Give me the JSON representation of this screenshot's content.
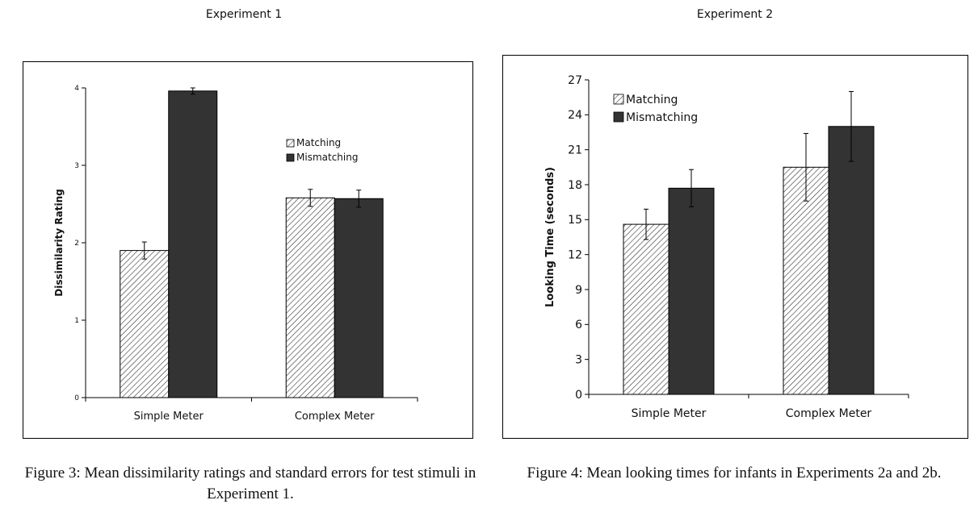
{
  "headers": {
    "exp1": "Experiment 1",
    "exp2": "Experiment 2"
  },
  "captions": {
    "fig3": "Figure 3:  Mean dissimilarity ratings and standard errors for test stimuli in Experiment 1.",
    "fig4": "Figure 4:  Mean looking times for infants in Experiments 2a and 2b."
  },
  "colors": {
    "matching_fill": "#ffffff",
    "matching_hatch": "#333333",
    "mismatching": "#333333"
  },
  "chart_data": [
    {
      "type": "bar",
      "xlabel": "",
      "ylabel": "Dissimilarity Rating",
      "ylim": [
        0,
        4
      ],
      "yticks": [
        0,
        1,
        2,
        3,
        4
      ],
      "categories": [
        "Simple Meter",
        "Complex Meter"
      ],
      "series": [
        {
          "name": "Matching",
          "values": [
            1.9,
            2.58
          ],
          "errors": [
            0.11,
            0.11
          ]
        },
        {
          "name": "Mismatching",
          "values": [
            3.96,
            2.57
          ],
          "errors": [
            0.04,
            0.11
          ]
        }
      ],
      "legend": "right-middle",
      "grid": false
    },
    {
      "type": "bar",
      "xlabel": "",
      "ylabel": "Looking Time  (seconds)",
      "ylim": [
        0,
        27
      ],
      "yticks": [
        0,
        3,
        6,
        9,
        12,
        15,
        18,
        21,
        24,
        27
      ],
      "categories": [
        "Simple Meter",
        "Complex Meter"
      ],
      "series": [
        {
          "name": "Matching",
          "values": [
            14.6,
            19.5
          ],
          "errors": [
            1.3,
            2.9
          ]
        },
        {
          "name": "Mismatching",
          "values": [
            17.7,
            23.0
          ],
          "errors": [
            1.6,
            3.0
          ]
        }
      ],
      "legend": "top-left",
      "grid": false
    }
  ]
}
